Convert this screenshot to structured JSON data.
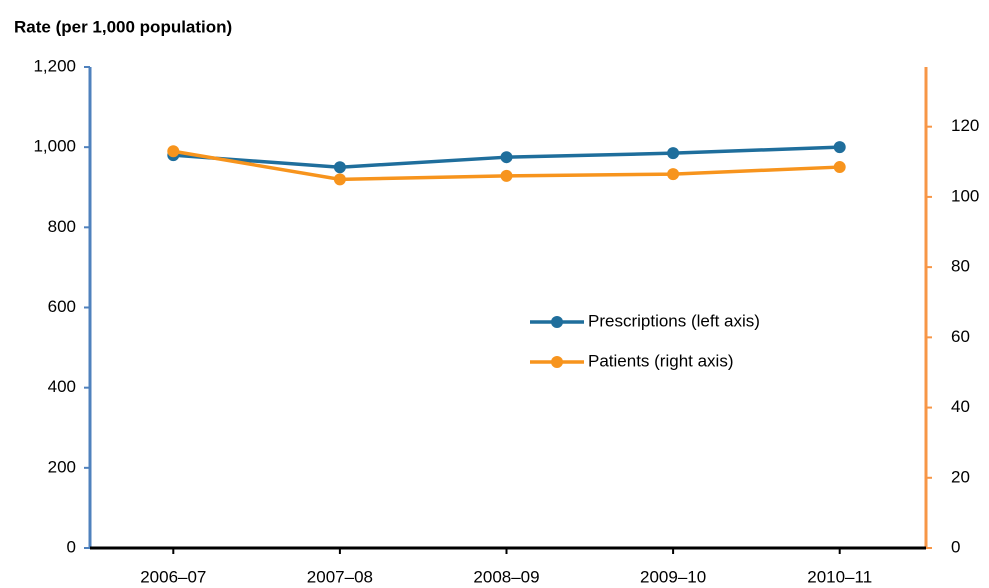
{
  "chart_data": {
    "type": "line",
    "y_label": "Rate (per 1,000 population)",
    "categories": [
      "2006–07",
      "2007–08",
      "2008–09",
      "2009–10",
      "2010–11"
    ],
    "series": [
      {
        "name": "Prescriptions (left axis)",
        "color": "#1f6e9c",
        "values": [
          980,
          950,
          975,
          985,
          1000
        ]
      },
      {
        "name": "Patients (right axis)",
        "color": "#f7941d",
        "axis": "y2",
        "values": [
          113,
          105,
          106,
          106.5,
          108.5
        ]
      }
    ],
    "ylim": [
      0,
      1200
    ],
    "yticks": [
      0,
      200,
      400,
      600,
      800,
      {
        "value": 1000,
        "label": "1,000"
      },
      {
        "value": 1200,
        "label": "1,200"
      }
    ],
    "y2lim": [
      0,
      137
    ],
    "y2ticks": [
      0,
      20,
      40,
      60,
      80,
      100,
      120
    ],
    "y_axis_color": "#4f81bd",
    "y2_axis_color": "#f79646",
    "legend": "center-right"
  }
}
